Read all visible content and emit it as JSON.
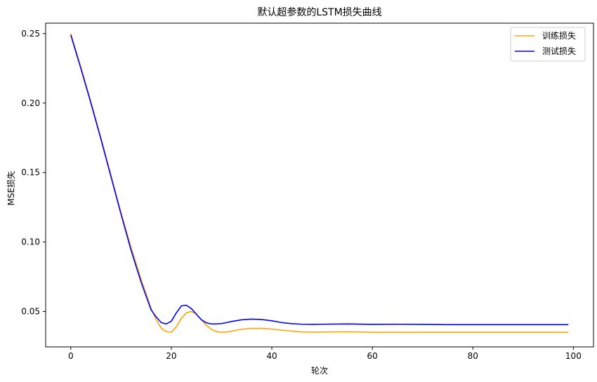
{
  "chart_data": {
    "type": "line",
    "title": "默认超参数的LSTM损失曲线",
    "xlabel": "轮次",
    "ylabel": "MSE损失",
    "xlim": [
      -5,
      104
    ],
    "ylim": [
      0.0245,
      0.2575
    ],
    "x_ticks": [
      0,
      20,
      40,
      60,
      80,
      100
    ],
    "x_tick_labels": [
      "0",
      "20",
      "40",
      "60",
      "80",
      "100"
    ],
    "y_ticks": [
      0.05,
      0.1,
      0.15,
      0.2,
      0.25
    ],
    "y_tick_labels": [
      "0.05",
      "0.10",
      "0.15",
      "0.20",
      "0.25"
    ],
    "grid": false,
    "legend_position": "top-right",
    "series": [
      {
        "name": "训练损失",
        "color": "#FFA500",
        "x": [
          0,
          2,
          4,
          6,
          8,
          10,
          12,
          14,
          16,
          17,
          18,
          19,
          20,
          21,
          22,
          23,
          24,
          25,
          26,
          27,
          28,
          29,
          30,
          31,
          32,
          34,
          36,
          38,
          40,
          42,
          44,
          46,
          48,
          50,
          55,
          60,
          65,
          70,
          75,
          80,
          85,
          90,
          95,
          99
        ],
        "y": [
          0.25,
          0.226,
          0.201,
          0.175,
          0.148,
          0.121,
          0.096,
          0.073,
          0.052,
          0.044,
          0.038,
          0.0355,
          0.035,
          0.039,
          0.045,
          0.049,
          0.05,
          0.048,
          0.044,
          0.04,
          0.037,
          0.0355,
          0.035,
          0.0352,
          0.0358,
          0.0372,
          0.0378,
          0.0378,
          0.0373,
          0.0365,
          0.0358,
          0.0353,
          0.0351,
          0.0352,
          0.0354,
          0.035,
          0.035,
          0.035,
          0.035,
          0.035,
          0.035,
          0.035,
          0.035,
          0.035
        ]
      },
      {
        "name": "测试损失",
        "color": "#0000FF",
        "x": [
          0,
          2,
          4,
          6,
          8,
          10,
          12,
          14,
          16,
          17,
          18,
          19,
          20,
          21,
          22,
          23,
          24,
          25,
          26,
          27,
          28,
          29,
          30,
          31,
          32,
          34,
          36,
          38,
          40,
          42,
          44,
          46,
          48,
          50,
          55,
          60,
          65,
          70,
          75,
          80,
          85,
          90,
          95,
          99
        ],
        "y": [
          0.249,
          0.225,
          0.2,
          0.174,
          0.147,
          0.12,
          0.094,
          0.071,
          0.051,
          0.046,
          0.042,
          0.041,
          0.043,
          0.049,
          0.054,
          0.0545,
          0.052,
          0.048,
          0.044,
          0.0418,
          0.041,
          0.041,
          0.0413,
          0.042,
          0.0428,
          0.044,
          0.0445,
          0.0442,
          0.0433,
          0.042,
          0.0412,
          0.0408,
          0.0407,
          0.0408,
          0.041,
          0.0407,
          0.0408,
          0.0407,
          0.0405,
          0.0405,
          0.0405,
          0.0405,
          0.0405,
          0.0405
        ]
      }
    ]
  }
}
